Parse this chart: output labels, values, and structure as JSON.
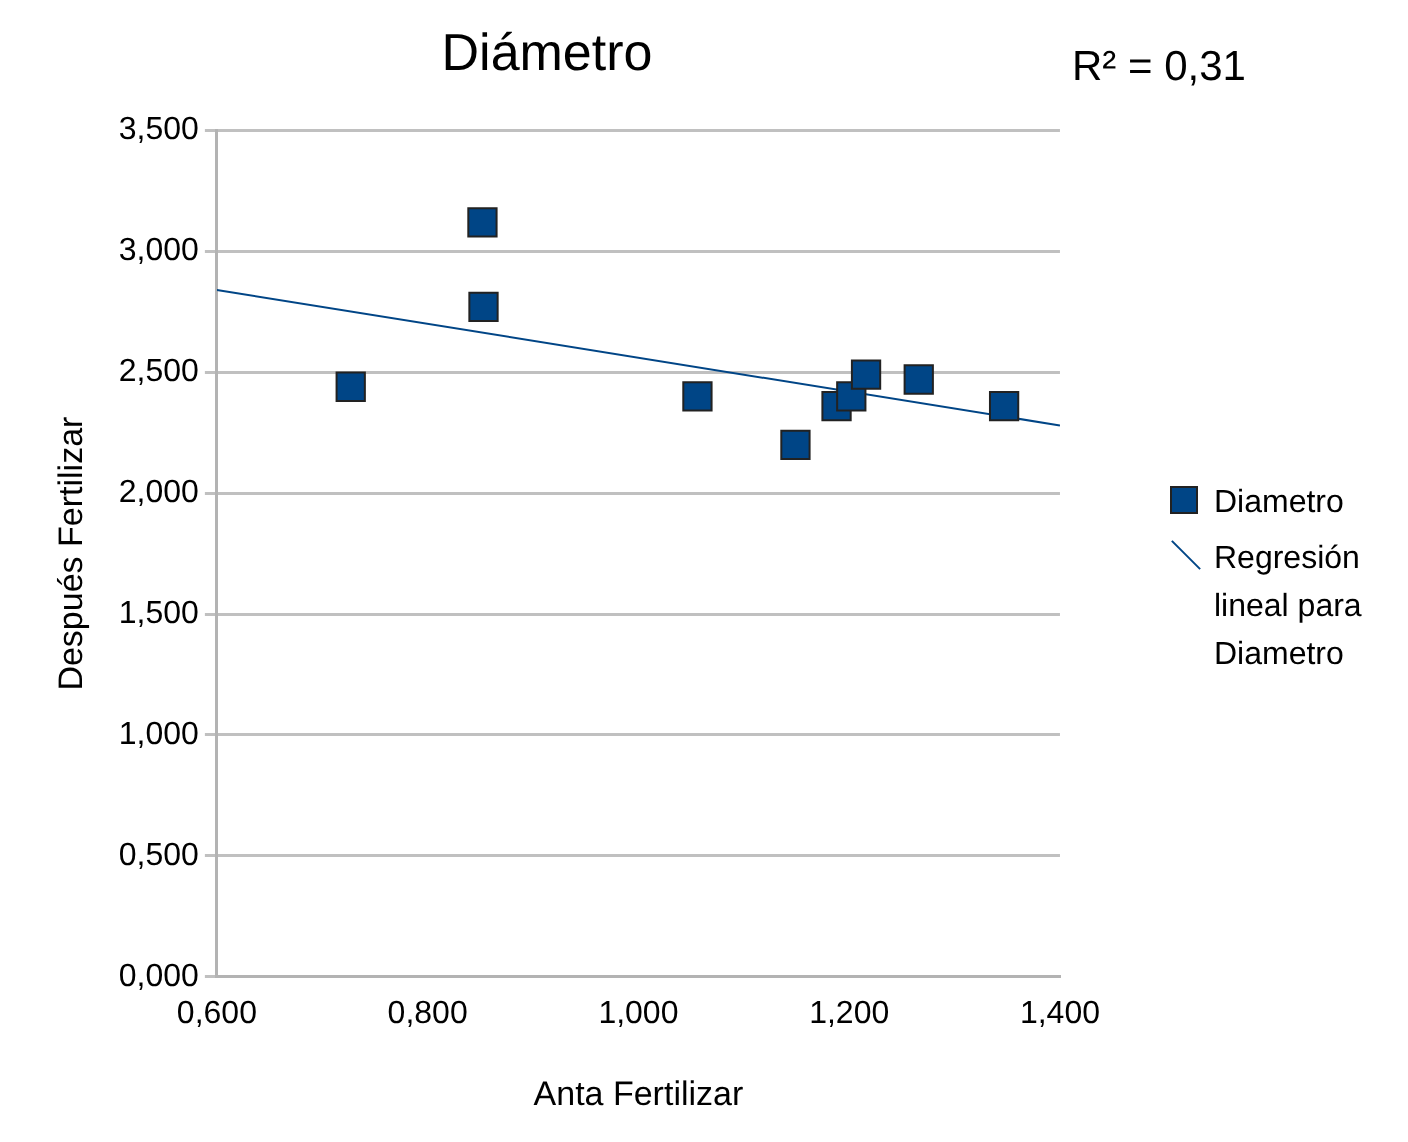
{
  "chart_data": {
    "type": "scatter",
    "title": "Diámetro",
    "xlabel": "Anta Fertilizar",
    "ylabel": "Después Fertilizar",
    "annotations": [
      "R² = 0,31"
    ],
    "series": [
      {
        "name": "Diametro",
        "type": "scatter",
        "color": "#004586",
        "marker": "square",
        "x": [
          0.727,
          0.852,
          0.853,
          1.056,
          1.149,
          1.188,
          1.202,
          1.216,
          1.266,
          1.347
        ],
        "values": [
          2.44,
          3.12,
          2.77,
          2.4,
          2.2,
          2.36,
          2.4,
          2.49,
          2.47,
          2.36
        ]
      },
      {
        "name": "Regresión lineal para Diametro",
        "type": "line",
        "color": "#004586",
        "marker": "none",
        "x": [
          0.6,
          1.4
        ],
        "values": [
          2.84,
          2.28
        ]
      }
    ],
    "xlim": [
      0.6,
      1.4
    ],
    "xticks": [
      {
        "value": 0.6,
        "label": "0,600"
      },
      {
        "value": 0.8,
        "label": "0,800"
      },
      {
        "value": 1.0,
        "label": "1,000"
      },
      {
        "value": 1.2,
        "label": "1,200"
      },
      {
        "value": 1.4,
        "label": "1,400"
      }
    ],
    "ylim": [
      0,
      3.5
    ],
    "yticks": [
      {
        "value": 0,
        "label": "0,000"
      },
      {
        "value": 0.5,
        "label": "0,500"
      },
      {
        "value": 1.0,
        "label": "1,000"
      },
      {
        "value": 1.5,
        "label": "1,500"
      },
      {
        "value": 2.0,
        "label": "2,000"
      },
      {
        "value": 2.5,
        "label": "2,500"
      },
      {
        "value": 3.0,
        "label": "3,000"
      },
      {
        "value": 3.5,
        "label": "3,500"
      }
    ],
    "grid": "y",
    "legend": "right"
  }
}
